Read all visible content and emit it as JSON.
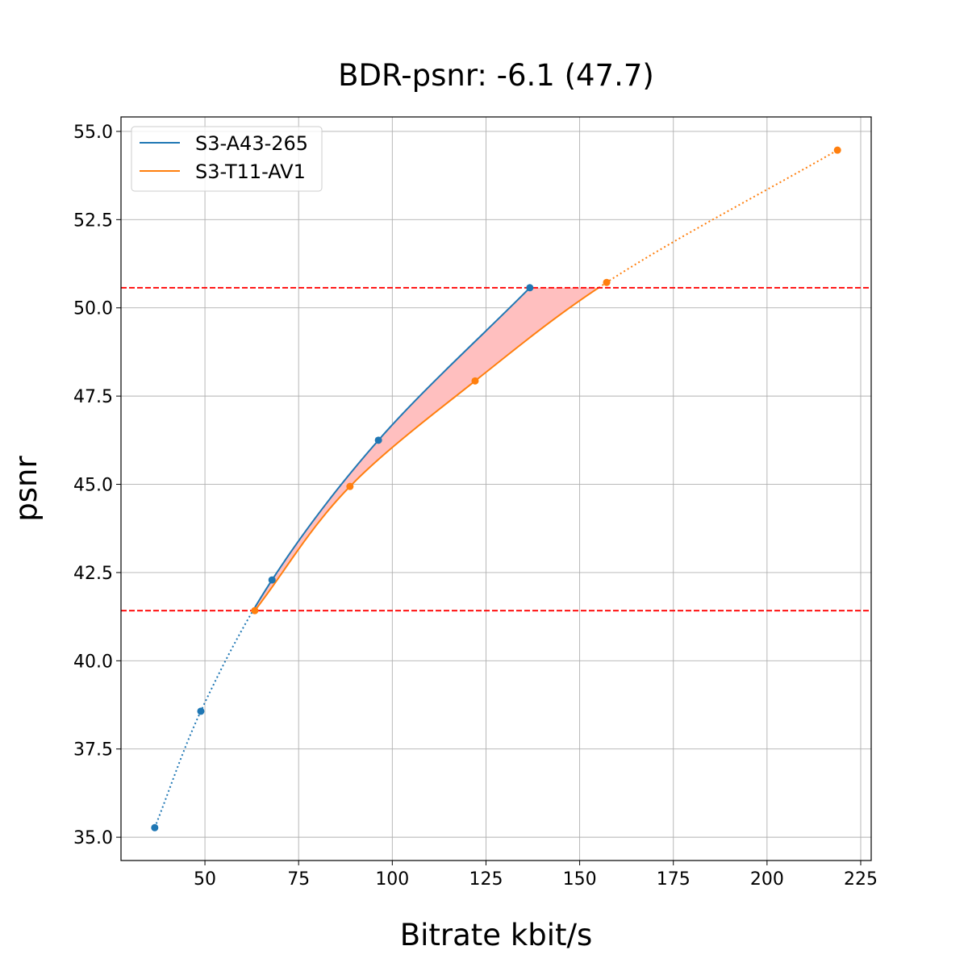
{
  "chart_data": {
    "type": "line",
    "title": "BDR-psnr: -6.1 (47.7)",
    "xlabel": "Bitrate kbit/s",
    "ylabel": "psnr",
    "xlim": [
      27.6,
      227.8
    ],
    "ylim": [
      34.34,
      55.41
    ],
    "xticks": [
      50,
      75,
      100,
      125,
      150,
      175,
      200,
      225
    ],
    "xtick_labels": [
      "50",
      "75",
      "100",
      "125",
      "150",
      "175",
      "200",
      "225"
    ],
    "yticks": [
      35.0,
      37.5,
      40.0,
      42.5,
      45.0,
      47.5,
      50.0,
      52.5,
      55.0
    ],
    "ytick_labels": [
      "35.0",
      "37.5",
      "40.0",
      "42.5",
      "45.0",
      "47.5",
      "50.0",
      "52.5",
      "55.0"
    ],
    "grid": true,
    "legend_position": "top-left",
    "series": [
      {
        "name": "S3-A43-265",
        "color": "#1f77b4",
        "x": [
          36.6,
          48.9,
          67.9,
          96.3,
          136.7
        ],
        "y": [
          35.27,
          38.57,
          42.29,
          46.25,
          50.57
        ]
      },
      {
        "name": "S3-T11-AV1",
        "color": "#ff7f0e",
        "x": [
          63.3,
          88.7,
          122.1,
          157.2,
          218.8
        ],
        "y": [
          41.42,
          44.94,
          47.93,
          50.72,
          54.47
        ]
      }
    ],
    "reference_lines": {
      "orientation": "horizontal",
      "style": "dashed",
      "color": "#ff0000",
      "y": [
        50.57,
        41.42
      ]
    },
    "fill_between": {
      "color": "#ffbfbf",
      "y_range": [
        41.42,
        50.57
      ]
    }
  }
}
